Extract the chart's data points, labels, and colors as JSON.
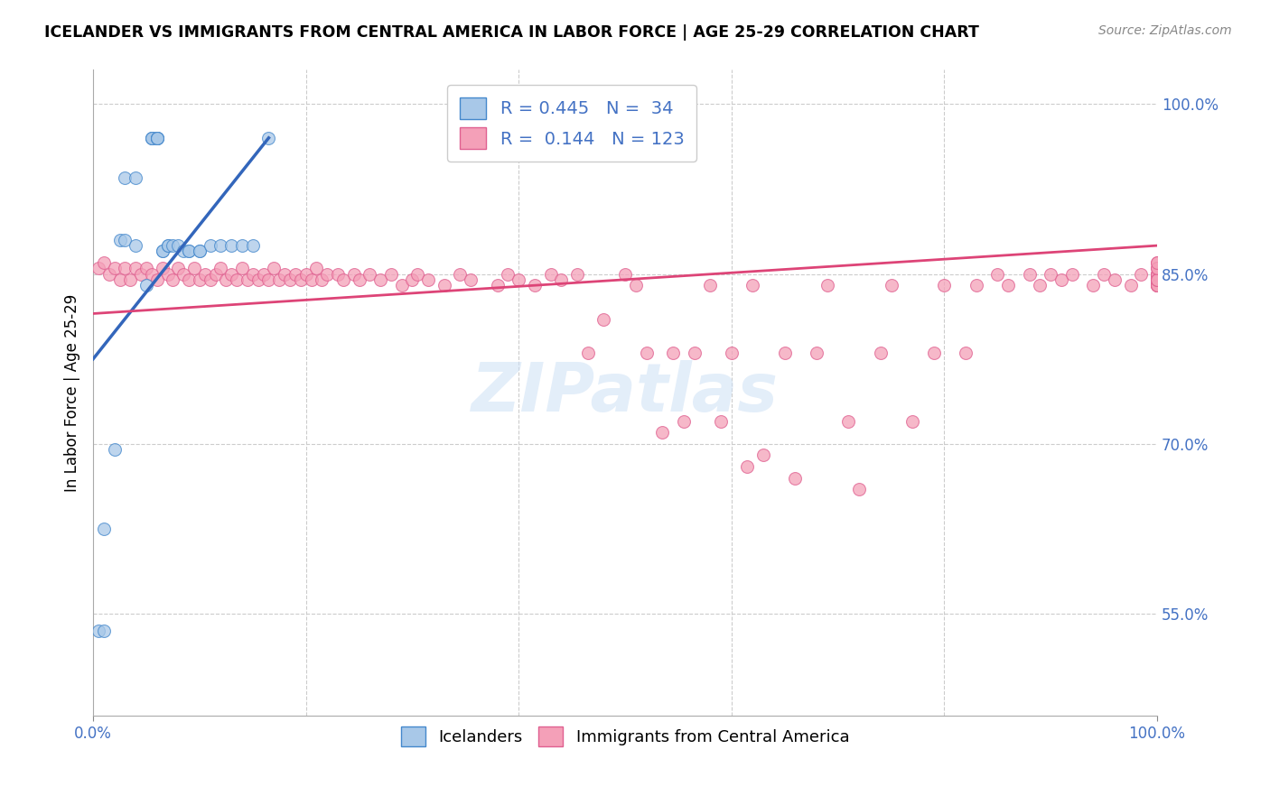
{
  "title": "ICELANDER VS IMMIGRANTS FROM CENTRAL AMERICA IN LABOR FORCE | AGE 25-29 CORRELATION CHART",
  "source": "Source: ZipAtlas.com",
  "ylabel": "In Labor Force | Age 25-29",
  "xlim": [
    0.0,
    1.0
  ],
  "ylim": [
    0.46,
    1.03
  ],
  "blue_R": 0.445,
  "blue_N": 34,
  "pink_R": 0.144,
  "pink_N": 123,
  "blue_color": "#a8c8e8",
  "pink_color": "#f4a0b8",
  "blue_edge_color": "#4488cc",
  "pink_edge_color": "#e06090",
  "blue_line_color": "#3366bb",
  "pink_line_color": "#dd4477",
  "legend_label_1": "Icelanders",
  "legend_label_2": "Immigrants from Central America",
  "yticks": [
    0.55,
    0.7,
    0.85,
    1.0
  ],
  "ytick_labels": [
    "55.0%",
    "70.0%",
    "85.0%",
    "100.0%"
  ],
  "xtick_labels": [
    "0.0%",
    "100.0%"
  ],
  "xtick_pos": [
    0.0,
    1.0
  ],
  "blue_x": [
    0.005,
    0.01,
    0.01,
    0.02,
    0.025,
    0.03,
    0.03,
    0.04,
    0.04,
    0.05,
    0.055,
    0.055,
    0.055,
    0.06,
    0.06,
    0.06,
    0.06,
    0.065,
    0.065,
    0.07,
    0.07,
    0.075,
    0.08,
    0.085,
    0.09,
    0.09,
    0.1,
    0.1,
    0.11,
    0.12,
    0.13,
    0.14,
    0.15,
    0.165
  ],
  "blue_y": [
    0.535,
    0.535,
    0.625,
    0.695,
    0.88,
    0.88,
    0.935,
    0.875,
    0.935,
    0.84,
    0.97,
    0.97,
    0.97,
    0.97,
    0.97,
    0.97,
    0.97,
    0.87,
    0.87,
    0.875,
    0.875,
    0.875,
    0.875,
    0.87,
    0.87,
    0.87,
    0.87,
    0.87,
    0.875,
    0.875,
    0.875,
    0.875,
    0.875,
    0.97
  ],
  "pink_x": [
    0.005,
    0.01,
    0.015,
    0.02,
    0.025,
    0.03,
    0.035,
    0.04,
    0.045,
    0.05,
    0.055,
    0.06,
    0.065,
    0.07,
    0.075,
    0.08,
    0.085,
    0.09,
    0.095,
    0.1,
    0.105,
    0.11,
    0.115,
    0.12,
    0.125,
    0.13,
    0.135,
    0.14,
    0.145,
    0.15,
    0.155,
    0.16,
    0.165,
    0.17,
    0.175,
    0.18,
    0.185,
    0.19,
    0.195,
    0.2,
    0.205,
    0.21,
    0.215,
    0.22,
    0.23,
    0.235,
    0.245,
    0.25,
    0.26,
    0.27,
    0.28,
    0.29,
    0.3,
    0.305,
    0.315,
    0.33,
    0.345,
    0.355,
    0.38,
    0.39,
    0.4,
    0.415,
    0.43,
    0.44,
    0.455,
    0.465,
    0.48,
    0.5,
    0.51,
    0.52,
    0.535,
    0.545,
    0.555,
    0.565,
    0.58,
    0.59,
    0.6,
    0.615,
    0.62,
    0.63,
    0.65,
    0.66,
    0.68,
    0.69,
    0.71,
    0.72,
    0.74,
    0.75,
    0.77,
    0.79,
    0.8,
    0.82,
    0.83,
    0.85,
    0.86,
    0.88,
    0.89,
    0.9,
    0.91,
    0.92,
    0.94,
    0.95,
    0.96,
    0.975,
    0.985,
    1.0,
    1.0,
    1.0,
    1.0,
    1.0,
    1.0,
    1.0,
    1.0,
    1.0,
    1.0,
    1.0,
    1.0,
    1.0,
    1.0,
    1.0,
    1.0,
    1.0,
    1.0
  ],
  "pink_y": [
    0.855,
    0.86,
    0.85,
    0.855,
    0.845,
    0.855,
    0.845,
    0.855,
    0.85,
    0.855,
    0.85,
    0.845,
    0.855,
    0.85,
    0.845,
    0.855,
    0.85,
    0.845,
    0.855,
    0.845,
    0.85,
    0.845,
    0.85,
    0.855,
    0.845,
    0.85,
    0.845,
    0.855,
    0.845,
    0.85,
    0.845,
    0.85,
    0.845,
    0.855,
    0.845,
    0.85,
    0.845,
    0.85,
    0.845,
    0.85,
    0.845,
    0.855,
    0.845,
    0.85,
    0.85,
    0.845,
    0.85,
    0.845,
    0.85,
    0.845,
    0.85,
    0.84,
    0.845,
    0.85,
    0.845,
    0.84,
    0.85,
    0.845,
    0.84,
    0.85,
    0.845,
    0.84,
    0.85,
    0.845,
    0.85,
    0.78,
    0.81,
    0.85,
    0.84,
    0.78,
    0.71,
    0.78,
    0.72,
    0.78,
    0.84,
    0.72,
    0.78,
    0.68,
    0.84,
    0.69,
    0.78,
    0.67,
    0.78,
    0.84,
    0.72,
    0.66,
    0.78,
    0.84,
    0.72,
    0.78,
    0.84,
    0.78,
    0.84,
    0.85,
    0.84,
    0.85,
    0.84,
    0.85,
    0.845,
    0.85,
    0.84,
    0.85,
    0.845,
    0.84,
    0.85,
    0.84,
    0.85,
    0.845,
    0.85,
    0.84,
    0.85,
    0.845,
    0.84,
    0.84,
    0.845,
    0.84,
    0.85,
    0.845,
    0.855,
    0.86,
    0.845,
    0.855,
    0.86
  ]
}
